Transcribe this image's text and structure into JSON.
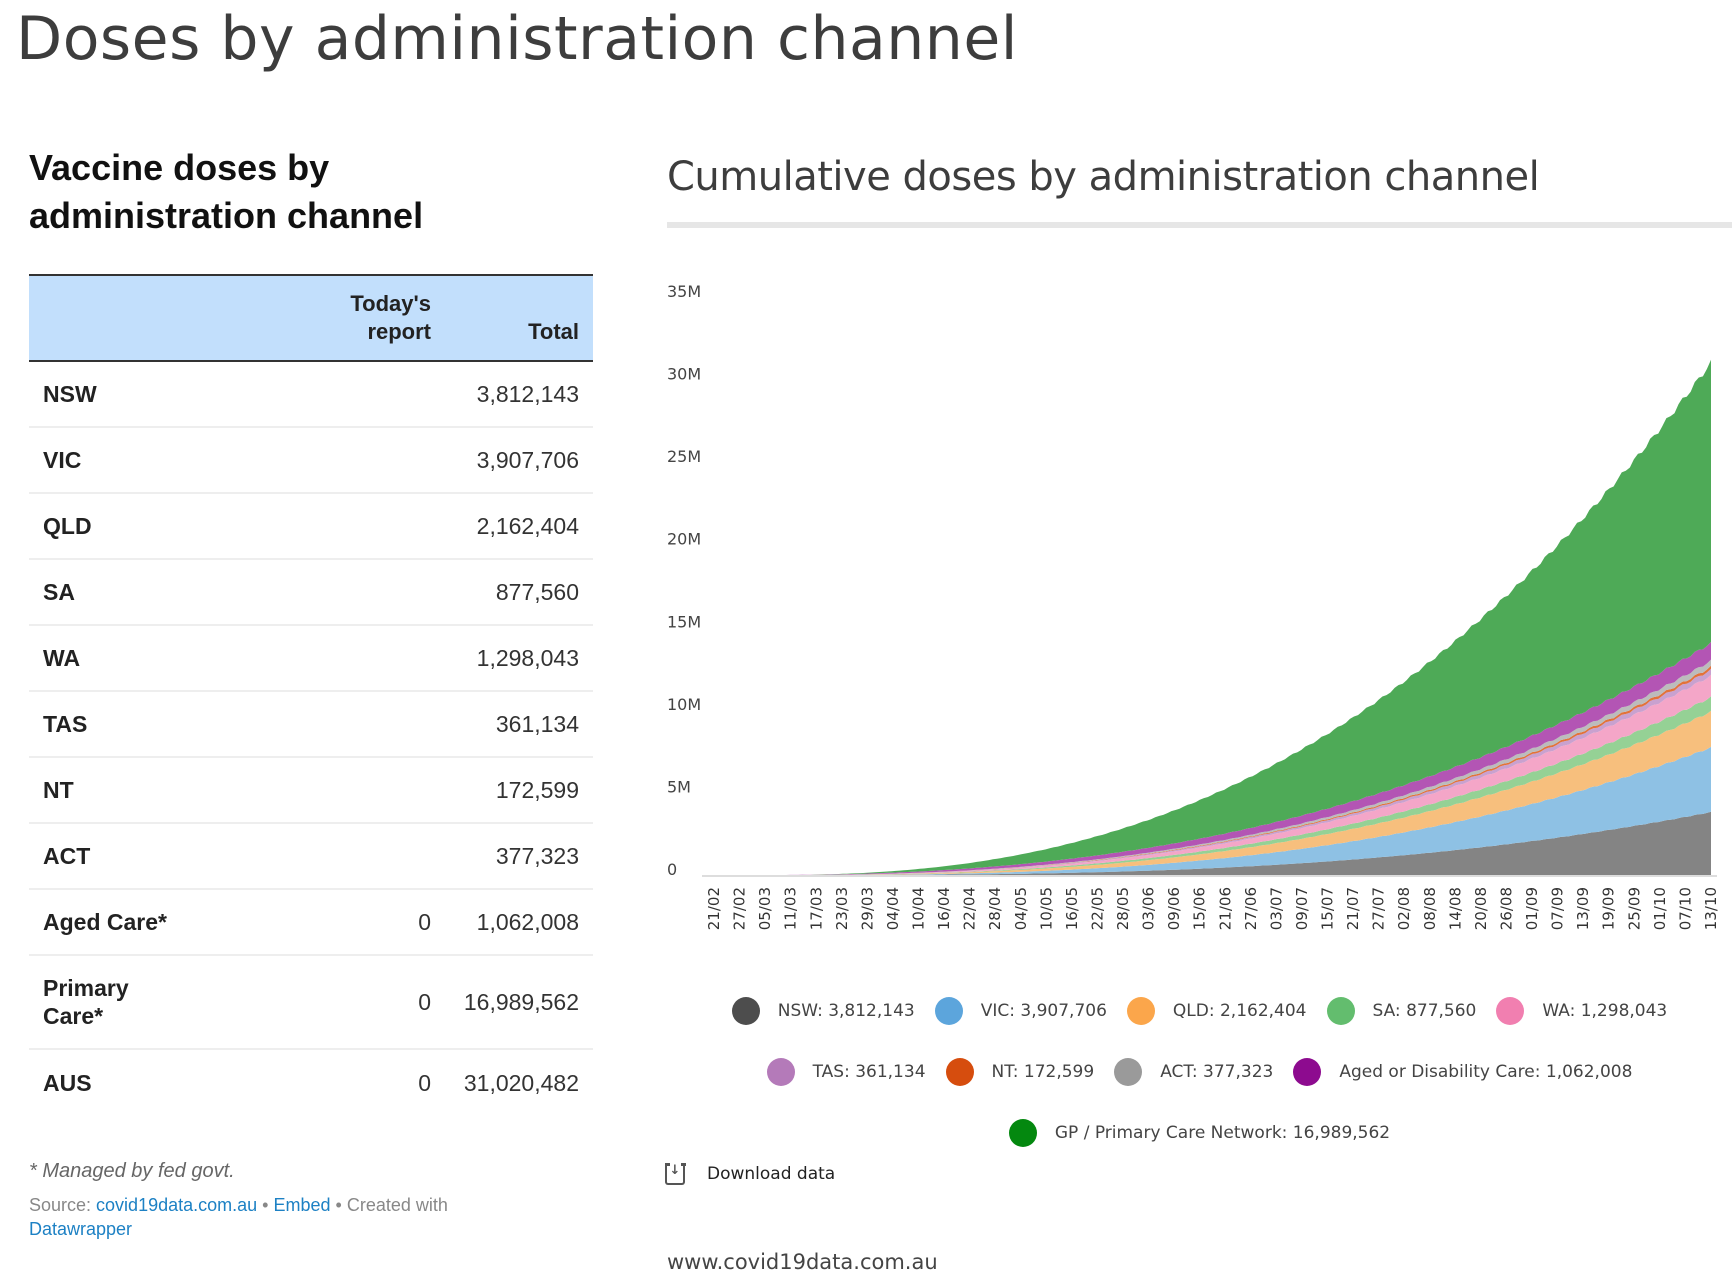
{
  "page": {
    "title": "Doses by administration channel"
  },
  "table_widget": {
    "heading": "Vaccine doses by administration channel",
    "columns": {
      "name": "",
      "today": "Today's report",
      "total": "Total"
    },
    "rows": [
      {
        "name": "NSW",
        "today": "",
        "total": "3,812,143"
      },
      {
        "name": "VIC",
        "today": "",
        "total": "3,907,706"
      },
      {
        "name": "QLD",
        "today": "",
        "total": "2,162,404"
      },
      {
        "name": "SA",
        "today": "",
        "total": "877,560"
      },
      {
        "name": "WA",
        "today": "",
        "total": "1,298,043"
      },
      {
        "name": "TAS",
        "today": "",
        "total": "361,134"
      },
      {
        "name": "NT",
        "today": "",
        "total": "172,599"
      },
      {
        "name": "ACT",
        "today": "",
        "total": "377,323"
      },
      {
        "name": "Aged Care*",
        "today": "0",
        "total": "1,062,008"
      },
      {
        "name": "Primary Care*",
        "today": "0",
        "total": "16,989,562"
      },
      {
        "name": "AUS",
        "today": "0",
        "total": "31,020,482"
      }
    ],
    "footnote": "* Managed by fed govt.",
    "source": {
      "prefix": "Source: ",
      "source_link": "covid19data.com.au",
      "sep1": " • ",
      "embed_link": "Embed",
      "sep2": " • Created with ",
      "datawrapper_link": "Datawrapper"
    }
  },
  "chart_widget": {
    "download_label": "Download data",
    "download_icon": "download-icon",
    "site_url": "www.covid19data.com.au"
  },
  "chart_data": {
    "type": "area",
    "stacked": true,
    "title": "Cumulative doses by administration channel",
    "xlabel": "",
    "ylabel": "",
    "ylim": [
      0,
      35000000
    ],
    "yticks": [
      0,
      5000000,
      10000000,
      15000000,
      20000000,
      25000000,
      30000000,
      35000000
    ],
    "ytick_labels": [
      "0",
      "5M",
      "10M",
      "15M",
      "20M",
      "25M",
      "30M",
      "35M"
    ],
    "grid": false,
    "legend_position": "bottom",
    "x_tick_labels": [
      "21/02",
      "27/02",
      "05/03",
      "11/03",
      "17/03",
      "23/03",
      "29/03",
      "04/04",
      "10/04",
      "16/04",
      "22/04",
      "28/04",
      "04/05",
      "10/05",
      "16/05",
      "22/05",
      "28/05",
      "03/06",
      "09/06",
      "15/06",
      "21/06",
      "27/06",
      "03/07",
      "09/07",
      "15/07",
      "21/07",
      "27/07",
      "02/08",
      "08/08",
      "14/08",
      "20/08",
      "26/08",
      "01/09",
      "07/09",
      "13/09",
      "19/09",
      "25/09",
      "01/10",
      "07/10",
      "13/10"
    ],
    "x_start_index_nonzero": 3,
    "series": [
      {
        "name": "NSW",
        "final_value": 3812143,
        "color": "#848484",
        "legend_color": "#4d4d4d",
        "legend_label": "NSW: 3,812,143"
      },
      {
        "name": "VIC",
        "final_value": 3907706,
        "color": "#8ec1e4",
        "legend_color": "#5ca5dc",
        "legend_label": "VIC: 3,907,706"
      },
      {
        "name": "QLD",
        "final_value": 2162404,
        "color": "#f7bf7d",
        "legend_color": "#fba64b",
        "legend_label": "QLD: 2,162,404"
      },
      {
        "name": "SA",
        "final_value": 877560,
        "color": "#95d195",
        "legend_color": "#63bd6e",
        "legend_label": "SA: 877,560"
      },
      {
        "name": "WA",
        "final_value": 1298043,
        "color": "#f4a6c8",
        "legend_color": "#f17fb0",
        "legend_label": "WA: 1,298,043"
      },
      {
        "name": "TAS",
        "final_value": 361134,
        "color": "#c9a1cf",
        "legend_color": "#b47ab9",
        "legend_label": "TAS: 361,134"
      },
      {
        "name": "NT",
        "final_value": 172599,
        "color": "#e2723a",
        "legend_color": "#d64d0e",
        "legend_label": "NT: 172,599"
      },
      {
        "name": "ACT",
        "final_value": 377323,
        "color": "#bcbcbc",
        "legend_color": "#9a9a9a",
        "legend_label": "ACT: 377,323"
      },
      {
        "name": "Aged or Disability Care",
        "final_value": 1062008,
        "color": "#b355b4",
        "legend_color": "#8d0b8f",
        "legend_label": "Aged or Disability Care: 1,062,008"
      },
      {
        "name": "GP / Primary Care Network",
        "final_value": 16989562,
        "color": "#4eaa57",
        "legend_color": "#04880f",
        "legend_label": "GP / Primary Care Network: 16,989,562"
      }
    ],
    "legend_rows": [
      [
        0,
        1,
        2,
        3,
        4
      ],
      [
        5,
        6,
        7,
        8
      ],
      [
        9
      ]
    ]
  }
}
